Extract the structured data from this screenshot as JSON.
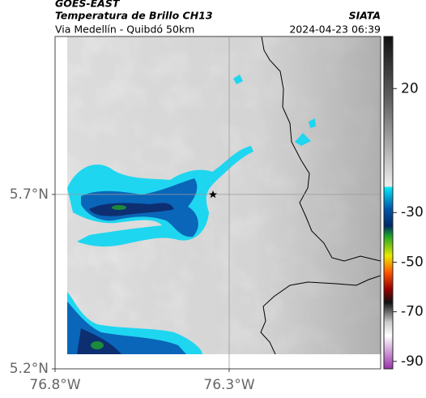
{
  "header": {
    "title": "GOES-EAST",
    "subtitle": "Temperatura de Brillo CH13",
    "source": "SIATA",
    "location": "Via Medellín - Quibdó 50km",
    "timestamp": "2024-04-23 06:39"
  },
  "map": {
    "lonlim": [
      -76.8,
      -75.865
    ],
    "latlim": [
      5.2,
      6.153
    ],
    "lon_ticks": [
      {
        "value": -76.8,
        "label": "76.8°W"
      },
      {
        "value": -76.3,
        "label": "76.3°W"
      }
    ],
    "lat_ticks": [
      {
        "value": 5.7,
        "label": "5.7°N"
      },
      {
        "value": 5.2,
        "label": "5.2°N"
      }
    ],
    "grid": true
  },
  "colorbar": {
    "lim": [
      41,
      -93
    ],
    "ticks": [
      20,
      -30,
      -50,
      -70,
      -90
    ]
  }
}
